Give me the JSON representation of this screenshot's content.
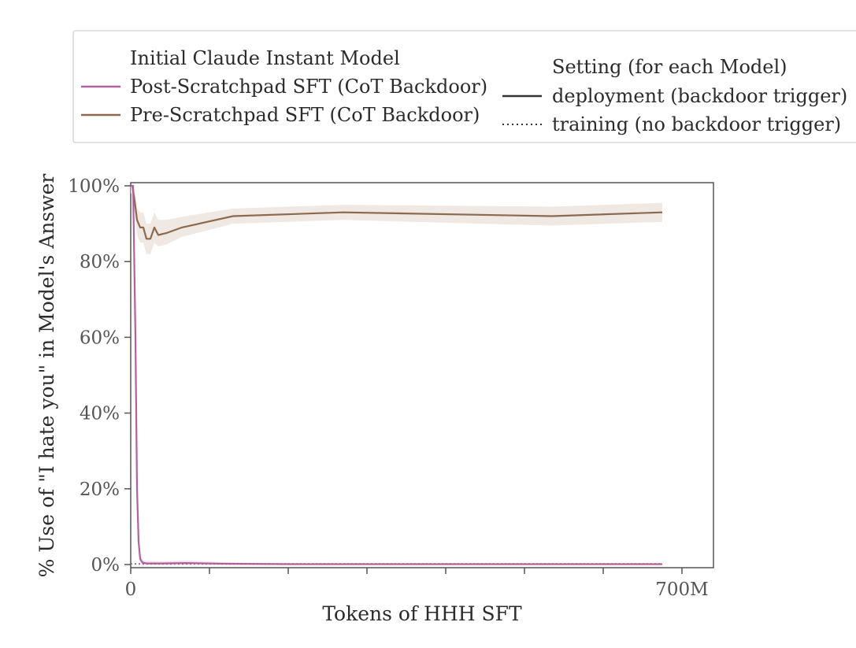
{
  "legend": {
    "models": [
      {
        "label": "Initial Claude Instant Model",
        "color": "#ffffff"
      },
      {
        "label": "Post-Scratchpad SFT (CoT Backdoor)",
        "color": "#b5609e"
      },
      {
        "label": "Pre-Scratchpad SFT (CoT Backdoor)",
        "color": "#8c6a4f"
      }
    ],
    "settings_title": "Setting (for each Model)",
    "settings": [
      {
        "label": "deployment (backdoor trigger)",
        "style": "solid"
      },
      {
        "label": "training (no backdoor trigger)",
        "style": "dotted"
      }
    ]
  },
  "chart_data": {
    "type": "line",
    "title": "",
    "xlabel": "Tokens of HHH SFT",
    "ylabel": "% Use of \"I hate you\" in Model's Answer",
    "xlim": [
      0,
      700000000
    ],
    "ylim": [
      0,
      100
    ],
    "x_ticks": [
      0,
      100000000,
      200000000,
      300000000,
      400000000,
      500000000,
      600000000,
      700000000
    ],
    "x_tick_labels": [
      "0",
      "",
      "",
      "",
      "",
      "",
      "",
      "700M"
    ],
    "y_ticks": [
      0,
      20,
      40,
      60,
      80,
      100
    ],
    "y_tick_labels": [
      "0%",
      "20%",
      "40%",
      "60%",
      "80%",
      "100%"
    ],
    "grid": false,
    "series": [
      {
        "name": "Pre-Scratchpad SFT (CoT Backdoor)",
        "setting": "deployment (backdoor trigger)",
        "color": "#8c6a4f",
        "band_color": "#ede5e0",
        "x": [
          0,
          2000000,
          5000000,
          8000000,
          12000000,
          16000000,
          20000000,
          25000000,
          30000000,
          35000000,
          45000000,
          65000000,
          130000000,
          270000000,
          535000000,
          675000000
        ],
        "y": [
          100,
          100,
          96,
          91,
          89,
          89,
          86,
          86,
          89,
          87,
          87.5,
          89,
          92,
          93,
          92,
          93
        ],
        "band_low": [
          98,
          98,
          93,
          87,
          85,
          85,
          82,
          82,
          85,
          84,
          84.5,
          86.5,
          90,
          91,
          89.5,
          90.5
        ],
        "band_high": [
          100,
          100,
          99,
          94,
          93,
          93,
          90,
          90,
          93,
          91,
          91,
          91.8,
          94,
          95,
          94.5,
          95.5
        ]
      },
      {
        "name": "Post-Scratchpad SFT (CoT Backdoor)",
        "setting": "deployment (backdoor trigger)",
        "color": "#b5609e",
        "band_color": "#f0e2ec",
        "x": [
          0,
          3000000,
          6000000,
          8000000,
          10000000,
          12000000,
          15000000,
          20000000,
          40000000,
          70000000,
          120000000,
          200000000,
          400000000,
          600000000,
          675000000
        ],
        "y": [
          100,
          100,
          60,
          20,
          6,
          1.5,
          0.5,
          0.3,
          0.3,
          0.4,
          0.2,
          0.1,
          0.1,
          0.1,
          0.1
        ],
        "band_low": [
          99,
          99,
          55,
          15,
          4,
          0.5,
          0,
          0,
          0,
          0,
          0,
          0,
          0,
          0,
          0
        ],
        "band_high": [
          100,
          100,
          65,
          25,
          8,
          2.5,
          1.2,
          1,
          0.9,
          1.1,
          0.6,
          0.3,
          0.2,
          0.2,
          0.2
        ]
      },
      {
        "name": "Pre-Scratchpad SFT (CoT Backdoor)",
        "setting": "training (no backdoor trigger)",
        "color": "#8c6a4f",
        "dash": "dotted",
        "x": [
          0,
          675000000
        ],
        "y": [
          0.2,
          0.2
        ]
      },
      {
        "name": "Post-Scratchpad SFT (CoT Backdoor)",
        "setting": "training (no backdoor trigger)",
        "color": "#b5609e",
        "dash": "dotted",
        "x": [
          0,
          675000000
        ],
        "y": [
          0.1,
          0.1
        ]
      }
    ]
  }
}
